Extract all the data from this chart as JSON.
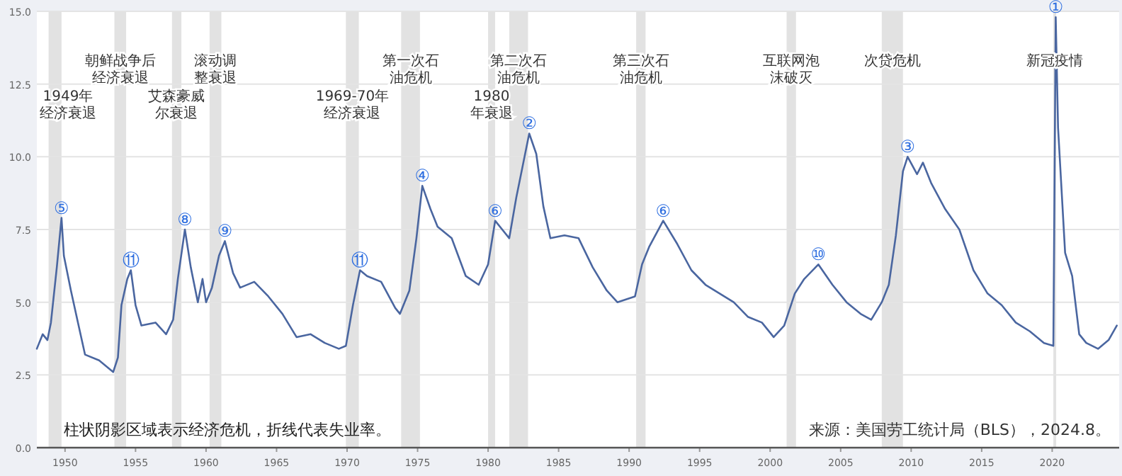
{
  "chart_data": {
    "type": "line",
    "x": [
      "1948-01",
      "1948-06",
      "1948-10",
      "1949-01",
      "1949-06",
      "1949-10",
      "1949-12",
      "1950-06",
      "1950-12",
      "1951-06",
      "1952-06",
      "1953-06",
      "1953-10",
      "1954-01",
      "1954-06",
      "1954-09",
      "1955-01",
      "1955-06",
      "1956-06",
      "1957-03",
      "1957-09",
      "1958-01",
      "1958-07",
      "1958-12",
      "1959-06",
      "1959-10",
      "1960-01",
      "1960-06",
      "1960-12",
      "1961-05",
      "1961-12",
      "1962-06",
      "1963-06",
      "1964-06",
      "1965-06",
      "1966-06",
      "1967-06",
      "1968-06",
      "1969-06",
      "1969-12",
      "1970-06",
      "1970-12",
      "1971-06",
      "1972-06",
      "1973-06",
      "1973-10",
      "1974-06",
      "1974-12",
      "1975-05",
      "1975-12",
      "1976-06",
      "1977-06",
      "1978-06",
      "1979-05",
      "1980-01",
      "1980-07",
      "1981-01",
      "1981-07",
      "1982-01",
      "1982-06",
      "1982-12",
      "1983-06",
      "1983-12",
      "1984-06",
      "1985-06",
      "1986-06",
      "1987-06",
      "1988-06",
      "1989-03",
      "1990-06",
      "1990-12",
      "1991-06",
      "1992-06",
      "1993-06",
      "1994-06",
      "1995-06",
      "1996-06",
      "1997-06",
      "1998-06",
      "1999-06",
      "2000-04",
      "2001-01",
      "2001-10",
      "2002-06",
      "2003-06",
      "2004-06",
      "2005-06",
      "2006-06",
      "2007-03",
      "2007-12",
      "2008-06",
      "2008-12",
      "2009-06",
      "2009-10",
      "2010-06",
      "2010-11",
      "2011-06",
      "2012-06",
      "2013-06",
      "2014-06",
      "2015-06",
      "2016-06",
      "2017-06",
      "2018-06",
      "2019-06",
      "2020-02",
      "2020-04",
      "2020-06",
      "2020-12",
      "2021-06",
      "2021-12",
      "2022-06",
      "2023-04",
      "2024-01",
      "2024-08"
    ],
    "series": [
      {
        "color": "#4a66a0",
        "values": [
          3.4,
          3.9,
          3.7,
          4.3,
          6.2,
          7.9,
          6.6,
          5.4,
          4.3,
          3.2,
          3.0,
          2.6,
          3.1,
          4.9,
          5.8,
          6.1,
          4.9,
          4.2,
          4.3,
          3.9,
          4.4,
          5.8,
          7.5,
          6.2,
          5.0,
          5.8,
          5.0,
          5.5,
          6.6,
          7.1,
          6.0,
          5.5,
          5.7,
          5.2,
          4.6,
          3.8,
          3.9,
          3.6,
          3.4,
          3.5,
          4.9,
          6.1,
          5.9,
          5.7,
          4.8,
          4.6,
          5.4,
          7.2,
          9.0,
          8.2,
          7.6,
          7.2,
          5.9,
          5.6,
          6.3,
          7.8,
          7.5,
          7.2,
          8.6,
          9.6,
          10.8,
          10.1,
          8.3,
          7.2,
          7.3,
          7.2,
          6.2,
          5.4,
          5.0,
          5.2,
          6.3,
          6.9,
          7.8,
          7.0,
          6.1,
          5.6,
          5.3,
          5.0,
          4.5,
          4.3,
          3.8,
          4.2,
          5.3,
          5.8,
          6.3,
          5.6,
          5.0,
          4.6,
          4.4,
          5.0,
          5.6,
          7.3,
          9.5,
          10.0,
          9.4,
          9.8,
          9.1,
          8.2,
          7.5,
          6.1,
          5.3,
          4.9,
          4.3,
          4.0,
          3.6,
          3.5,
          14.8,
          11.0,
          6.7,
          5.9,
          3.9,
          3.6,
          3.4,
          3.7,
          4.2
        ]
      }
    ],
    "xlim": [
      "1948-01",
      "2024-10"
    ],
    "xticks": [
      "1950",
      "1955",
      "1960",
      "1965",
      "1970",
      "1975",
      "1980",
      "1985",
      "1990",
      "1995",
      "2000",
      "2005",
      "2010",
      "2015",
      "2020"
    ],
    "ylim": [
      0,
      15
    ],
    "yticks": [
      {
        "value": 0,
        "label": "0.0"
      },
      {
        "value": 2.5,
        "label": "2.5"
      },
      {
        "value": 5,
        "label": "5.0"
      },
      {
        "value": 7.5,
        "label": "7.5"
      },
      {
        "value": 10,
        "label": "10.0"
      },
      {
        "value": 12.5,
        "label": "12.5"
      },
      {
        "value": 15,
        "label": "15.0"
      }
    ],
    "grid": "y",
    "bands": [
      {
        "axis": "x",
        "from": "1948-11",
        "to": "1949-10",
        "label": "1949年经济衰退",
        "color": "#e2e2e2"
      },
      {
        "axis": "x",
        "from": "1953-07",
        "to": "1954-05",
        "label": "朝鲜战争后经济衰退",
        "color": "#e2e2e2"
      },
      {
        "axis": "x",
        "from": "1957-08",
        "to": "1958-04",
        "label": "艾森豪威尔衰退",
        "color": "#e2e2e2"
      },
      {
        "axis": "x",
        "from": "1960-04",
        "to": "1961-02",
        "label": "滚动调整衰退",
        "color": "#e2e2e2"
      },
      {
        "axis": "x",
        "from": "1969-12",
        "to": "1970-11",
        "label": "1969-70年经济衰退",
        "color": "#e2e2e2"
      },
      {
        "axis": "x",
        "from": "1973-11",
        "to": "1975-03",
        "label": "第一次石油危机",
        "color": "#e2e2e2"
      },
      {
        "axis": "x",
        "from": "1980-01",
        "to": "1980-07",
        "label": "1980年衰退",
        "color": "#e2e2e2"
      },
      {
        "axis": "x",
        "from": "1981-07",
        "to": "1982-11",
        "label": "第二次石油危机",
        "color": "#e2e2e2"
      },
      {
        "axis": "x",
        "from": "1990-07",
        "to": "1991-03",
        "label": "第三次石油危机",
        "color": "#e2e2e2"
      },
      {
        "axis": "x",
        "from": "2001-03",
        "to": "2001-11",
        "label": "互联网泡沫破灭",
        "color": "#e2e2e2"
      },
      {
        "axis": "x",
        "from": "2007-12",
        "to": "2009-06",
        "label": "次贷危机",
        "color": "#e2e2e2"
      },
      {
        "axis": "x",
        "from": "2020-02",
        "to": "2020-04",
        "label": "新冠疫情",
        "color": "#e2e2e2"
      }
    ],
    "annotations": [
      {
        "text": "⑤",
        "x": "1949-10",
        "y": 7.9
      },
      {
        "text": "⑪",
        "x": "1954-09",
        "y": 6.1
      },
      {
        "text": "⑧",
        "x": "1958-07",
        "y": 7.5
      },
      {
        "text": "⑨",
        "x": "1961-05",
        "y": 7.1
      },
      {
        "text": "⑪",
        "x": "1970-12",
        "y": 6.1
      },
      {
        "text": "④",
        "x": "1975-05",
        "y": 9.0
      },
      {
        "text": "⑥",
        "x": "1980-07",
        "y": 7.8
      },
      {
        "text": "②",
        "x": "1982-12",
        "y": 10.8
      },
      {
        "text": "⑥",
        "x": "1992-06",
        "y": 7.8
      },
      {
        "text": "⑩",
        "x": "2003-06",
        "y": 6.3
      },
      {
        "text": "③",
        "x": "2009-10",
        "y": 10.0
      },
      {
        "text": "①",
        "x": "2020-04",
        "y": 14.8
      },
      "柱状阴影区域表示经济危机，折线代表失业率。",
      "来源：美国劳工统计局（BLS），2024.8。"
    ]
  }
}
